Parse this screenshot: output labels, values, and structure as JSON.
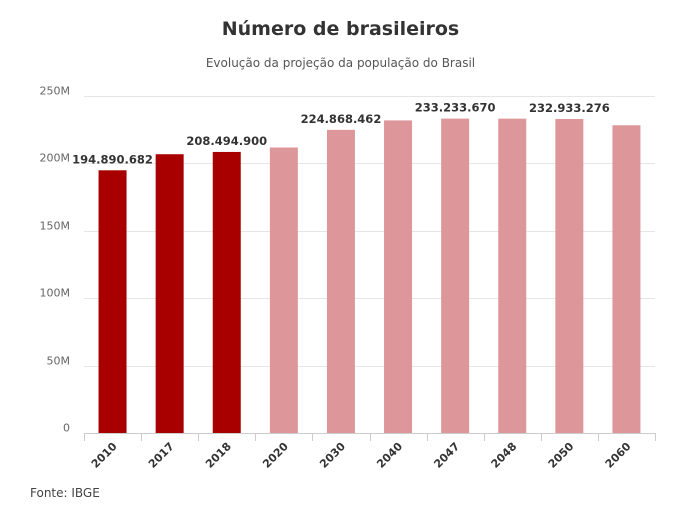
{
  "chart_data": {
    "type": "bar",
    "title": "Número de brasileiros",
    "subtitle": "Evolução da projeção da população do Brasil",
    "xlabel": "",
    "ylabel": "",
    "categories": [
      "2010",
      "2017",
      "2018",
      "2020",
      "2030",
      "2040",
      "2047",
      "2048",
      "2050",
      "2060"
    ],
    "values": [
      194890682,
      206800000,
      208494900,
      211800000,
      224868462,
      231900000,
      233233670,
      233200000,
      232933276,
      228300000
    ],
    "data_labels": [
      "194.890.682",
      "",
      "208.494.900",
      "",
      "224.868.462",
      "",
      "233.233.670",
      "",
      "232.933.276",
      ""
    ],
    "bar_colors": [
      "#a80000",
      "#a80000",
      "#a80000",
      "#dd979b",
      "#dd979b",
      "#dd979b",
      "#dd979b",
      "#dd979b",
      "#dd979b",
      "#dd979b"
    ],
    "ylim": [
      0,
      250000000
    ],
    "yticks": [
      0,
      50000000,
      100000000,
      150000000,
      200000000,
      250000000
    ],
    "ytick_labels": [
      "0",
      "50M",
      "100M",
      "150M",
      "200M",
      "250M"
    ],
    "grid": true,
    "legend": "none"
  },
  "source": "Fonte: IBGE"
}
